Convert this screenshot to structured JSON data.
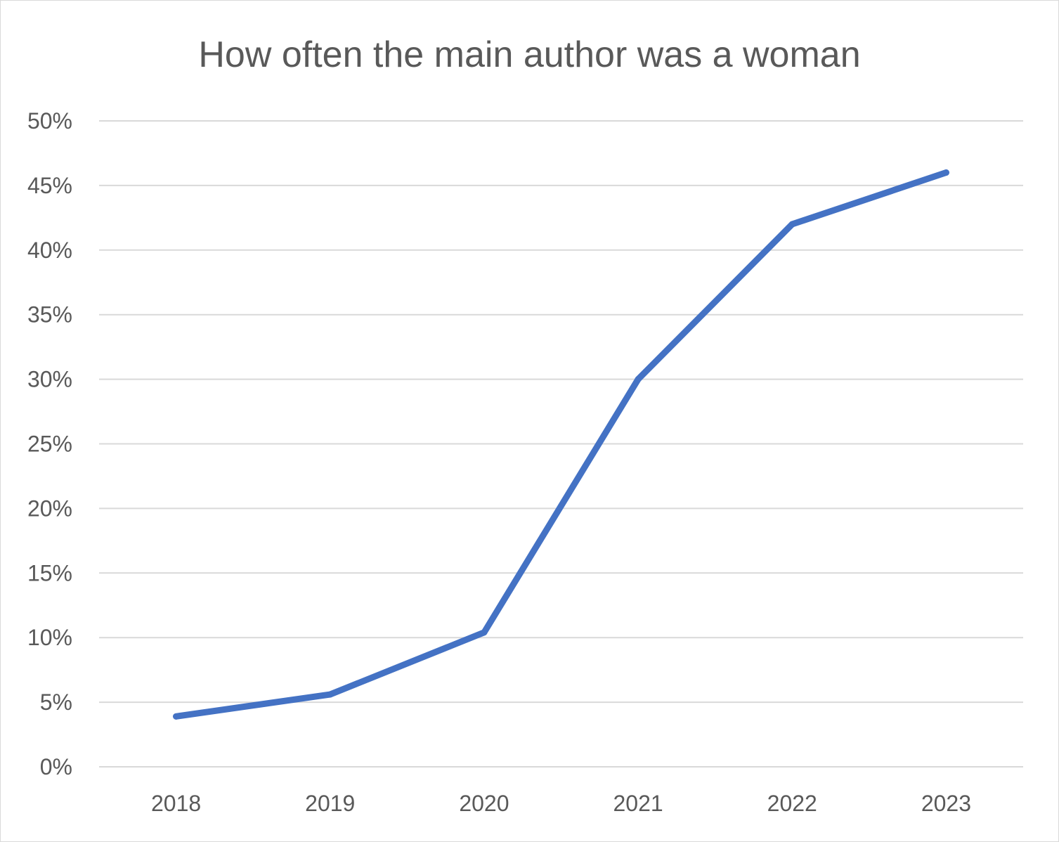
{
  "chart_data": {
    "type": "line",
    "title": "How often the main author was a woman",
    "xlabel": "",
    "ylabel": "",
    "categories": [
      "2018",
      "2019",
      "2020",
      "2021",
      "2022",
      "2023"
    ],
    "series": [
      {
        "values": [
          0.039,
          0.056,
          0.104,
          0.3,
          0.42,
          0.46
        ],
        "color": "#4472c4"
      }
    ],
    "ylim": [
      0,
      0.5
    ],
    "y_ticks": [
      0,
      0.05,
      0.1,
      0.15,
      0.2,
      0.25,
      0.3,
      0.35,
      0.4,
      0.45,
      0.5
    ],
    "y_tick_labels": [
      "0%",
      "5%",
      "10%",
      "15%",
      "20%",
      "25%",
      "30%",
      "35%",
      "40%",
      "45%",
      "50%"
    ],
    "grid": true,
    "gridline_color": "#d9d9d9",
    "legend": "none"
  }
}
